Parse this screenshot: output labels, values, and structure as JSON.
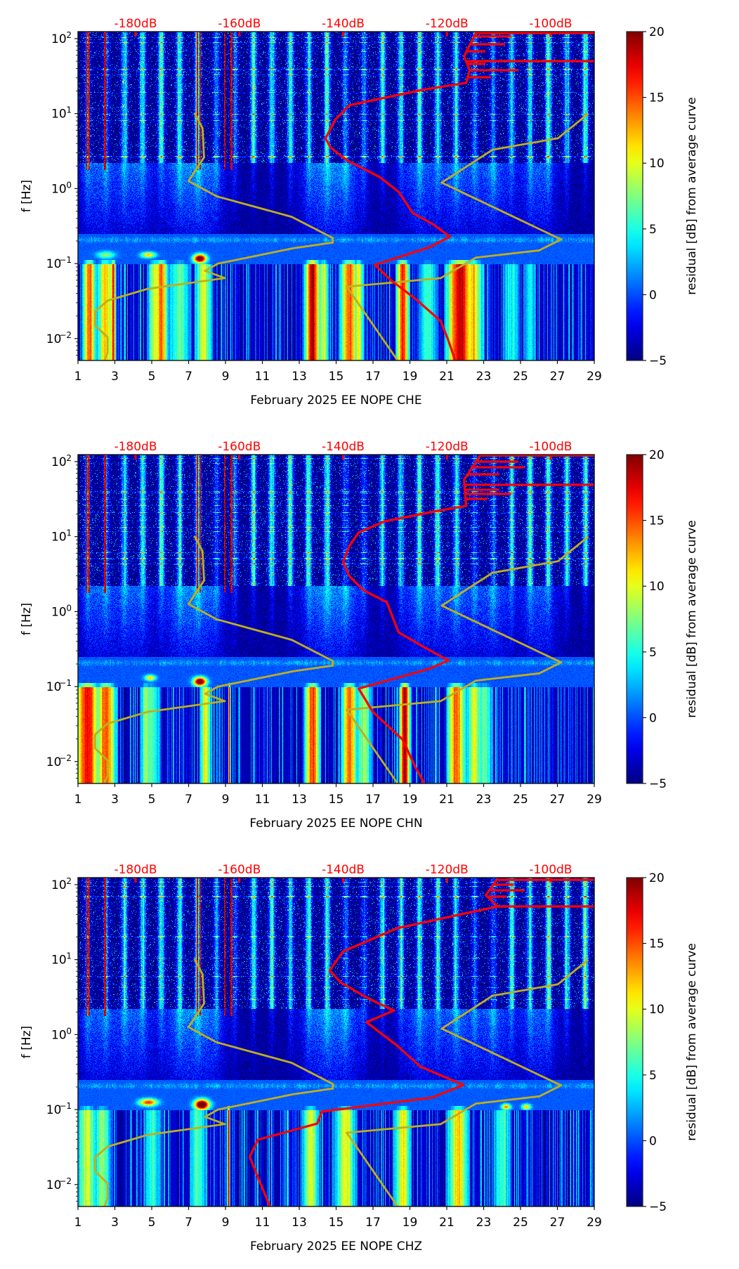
{
  "figure": {
    "ylabel": "f [Hz]",
    "colorbar_label": "residual [dB] from average curve"
  },
  "chart_data": [
    {
      "type": "heatmap",
      "title": "",
      "channel": "CHE",
      "xlabel": "February 2025 EE NOPE  CHE",
      "ylabel": "f [Hz]",
      "xlim": [
        1,
        29
      ],
      "x_ticks": [
        1,
        3,
        5,
        7,
        9,
        11,
        13,
        15,
        17,
        19,
        21,
        23,
        25,
        27,
        29
      ],
      "x_tick_labels": [
        "1",
        "3",
        "5",
        "7",
        "9",
        "11",
        "13",
        "15",
        "17",
        "19",
        "21",
        "23",
        "25",
        "27",
        "29"
      ],
      "y_scale": "log",
      "ylim": [
        0.0051,
        124
      ],
      "y_ticks": [
        0.01,
        0.1,
        1,
        10,
        100
      ],
      "y_tick_labels": [
        {
          "base": "10",
          "exp": "−2"
        },
        {
          "base": "10",
          "exp": "−1"
        },
        {
          "base": "10",
          "exp": "0"
        },
        {
          "base": "10",
          "exp": "1"
        },
        {
          "base": "10",
          "exp": "2"
        }
      ],
      "top_axis": {
        "range": [
          -191.1,
          -91.6
        ],
        "ticks": [
          -180,
          -160,
          -140,
          -120,
          -100
        ],
        "labels": [
          "-180dB",
          "-160dB",
          "-140dB",
          "-120dB",
          "-100dB"
        ],
        "color": "#ff0000"
      },
      "colorbar": {
        "colormap": "jet",
        "range": [
          -5,
          20
        ],
        "ticks": [
          -5,
          0,
          5,
          10,
          15,
          20
        ],
        "tick_labels": [
          "−5",
          "0",
          "5",
          "10",
          "15",
          "20"
        ],
        "label": "residual [dB] from average curve"
      },
      "series": [
        {
          "name": "NLNM",
          "color": "#c0ae1e",
          "axis": "top_dB",
          "points": [
            [
              10,
              -168.6
            ],
            [
              6.4,
              -167.1
            ],
            [
              2.6,
              -166.8
            ],
            [
              1.26,
              -169.8
            ],
            [
              0.79,
              -164.4
            ],
            [
              0.42,
              -149.9
            ],
            [
              0.22,
              -142.0
            ],
            [
              0.19,
              -142.0
            ],
            [
              0.16,
              -149.6
            ],
            [
              0.1,
              -164.1
            ],
            [
              0.08,
              -166.6
            ],
            [
              0.064,
              -162.8
            ],
            [
              0.046,
              -177.7
            ],
            [
              0.032,
              -185.4
            ],
            [
              0.023,
              -187.8
            ],
            [
              0.015,
              -187.8
            ],
            [
              0.0104,
              -185.4
            ],
            [
              0.0065,
              -185.4
            ],
            [
              0.0051,
              -186.0
            ]
          ]
        },
        {
          "name": "NHNM",
          "color": "#c0ae1e",
          "axis": "top_dB",
          "points": [
            [
              9.8,
              -92.9
            ],
            [
              4.7,
              -98.6
            ],
            [
              3.3,
              -111.2
            ],
            [
              1.2,
              -121.0
            ],
            [
              0.21,
              -98.0
            ],
            [
              0.15,
              -102.2
            ],
            [
              0.12,
              -114.4
            ],
            [
              0.064,
              -121.2
            ],
            [
              0.049,
              -139.3
            ],
            [
              0.0051,
              -129.5
            ]
          ]
        },
        {
          "name": "PSD",
          "color": "#ff0000",
          "axis": "top_dB",
          "points": [
            [
              119,
              -114.4
            ],
            [
              58.3,
              -116.7
            ],
            [
              37.9,
              -115.6
            ],
            [
              25.7,
              -116.3
            ],
            [
              20.7,
              -124.8
            ],
            [
              15.3,
              -133.9
            ],
            [
              12.9,
              -138.8
            ],
            [
              8.36,
              -141.5
            ],
            [
              4.67,
              -143.4
            ],
            [
              3.52,
              -142.4
            ],
            [
              2.39,
              -139.3
            ],
            [
              1.43,
              -133.0
            ],
            [
              0.906,
              -129.3
            ],
            [
              0.474,
              -126.6
            ],
            [
              0.328,
              -122.5
            ],
            [
              0.228,
              -119.4
            ],
            [
              0.164,
              -123.5
            ],
            [
              0.096,
              -133.9
            ],
            [
              0.0585,
              -130.6
            ],
            [
              0.0327,
              -125.8
            ],
            [
              0.0171,
              -121.2
            ],
            [
              0.00975,
              -119.8
            ],
            [
              0.00512,
              -118.4
            ]
          ],
          "spikes": [
            [
              119,
              -91.6
            ],
            [
              107,
              -107.6
            ],
            [
              84.1,
              -108.8
            ],
            [
              67.8,
              -112.6
            ],
            [
              50.1,
              -91.6
            ],
            [
              46,
              -112.6
            ],
            [
              37.9,
              -106.2
            ],
            [
              30.5,
              -111.5
            ]
          ]
        }
      ]
    },
    {
      "type": "heatmap",
      "title": "",
      "channel": "CHN",
      "xlabel": "February 2025 EE NOPE  CHN",
      "ylabel": "f [Hz]",
      "xlim": [
        1,
        29
      ],
      "x_ticks": [
        1,
        3,
        5,
        7,
        9,
        11,
        13,
        15,
        17,
        19,
        21,
        23,
        25,
        27,
        29
      ],
      "x_tick_labels": [
        "1",
        "3",
        "5",
        "7",
        "9",
        "11",
        "13",
        "15",
        "17",
        "19",
        "21",
        "23",
        "25",
        "27",
        "29"
      ],
      "y_scale": "log",
      "ylim": [
        0.0051,
        124
      ],
      "y_ticks": [
        0.01,
        0.1,
        1,
        10,
        100
      ],
      "y_tick_labels": [
        {
          "base": "10",
          "exp": "−2"
        },
        {
          "base": "10",
          "exp": "−1"
        },
        {
          "base": "10",
          "exp": "0"
        },
        {
          "base": "10",
          "exp": "1"
        },
        {
          "base": "10",
          "exp": "2"
        }
      ],
      "top_axis": {
        "range": [
          -191.1,
          -91.6
        ],
        "ticks": [
          -180,
          -160,
          -140,
          -120,
          -100
        ],
        "labels": [
          "-180dB",
          "-160dB",
          "-140dB",
          "-120dB",
          "-100dB"
        ],
        "color": "#ff0000"
      },
      "colorbar": {
        "colormap": "jet",
        "range": [
          -5,
          20
        ],
        "ticks": [
          -5,
          0,
          5,
          10,
          15,
          20
        ],
        "tick_labels": [
          "−5",
          "0",
          "5",
          "10",
          "15",
          "20"
        ],
        "label": "residual [dB] from average curve"
      },
      "series": [
        {
          "name": "NLNM",
          "color": "#c0ae1e",
          "axis": "top_dB",
          "points": [
            [
              10,
              -168.6
            ],
            [
              6.4,
              -167.1
            ],
            [
              2.6,
              -166.8
            ],
            [
              1.26,
              -169.8
            ],
            [
              0.79,
              -164.4
            ],
            [
              0.42,
              -149.9
            ],
            [
              0.22,
              -142.0
            ],
            [
              0.19,
              -142.0
            ],
            [
              0.16,
              -149.6
            ],
            [
              0.1,
              -164.1
            ],
            [
              0.08,
              -166.6
            ],
            [
              0.064,
              -162.8
            ],
            [
              0.046,
              -177.7
            ],
            [
              0.032,
              -185.4
            ],
            [
              0.023,
              -187.8
            ],
            [
              0.015,
              -187.8
            ],
            [
              0.0104,
              -185.4
            ],
            [
              0.0065,
              -185.4
            ],
            [
              0.0051,
              -186.0
            ]
          ]
        },
        {
          "name": "NHNM",
          "color": "#c0ae1e",
          "axis": "top_dB",
          "points": [
            [
              9.8,
              -92.9
            ],
            [
              4.7,
              -98.6
            ],
            [
              3.3,
              -111.2
            ],
            [
              1.2,
              -121.0
            ],
            [
              0.21,
              -98.0
            ],
            [
              0.15,
              -102.2
            ],
            [
              0.12,
              -114.4
            ],
            [
              0.064,
              -121.2
            ],
            [
              0.049,
              -139.3
            ],
            [
              0.0051,
              -129.5
            ]
          ]
        },
        {
          "name": "PSD",
          "color": "#ff0000",
          "axis": "top_dB",
          "points": [
            [
              121,
              -113.6
            ],
            [
              57.0,
              -116.7
            ],
            [
              25.7,
              -116.3
            ],
            [
              21.6,
              -122.5
            ],
            [
              16.0,
              -132.0
            ],
            [
              11.3,
              -137.0
            ],
            [
              7.5,
              -138.8
            ],
            [
              4.57,
              -140.0
            ],
            [
              2.97,
              -138.8
            ],
            [
              1.93,
              -136.1
            ],
            [
              1.34,
              -131.6
            ],
            [
              0.528,
              -129.3
            ],
            [
              0.321,
              -123.9
            ],
            [
              0.223,
              -119.7
            ],
            [
              0.172,
              -123.5
            ],
            [
              0.094,
              -137.0
            ],
            [
              0.0461,
              -134.3
            ],
            [
              0.0195,
              -128.5
            ],
            [
              0.00875,
              -126.2
            ],
            [
              0.00532,
              -124.5
            ]
          ],
          "spikes": [
            [
              121,
              -91.6
            ],
            [
              100,
              -106.2
            ],
            [
              84,
              -105.0
            ],
            [
              67.8,
              -109.9
            ],
            [
              49.1,
              -91.6
            ],
            [
              42.1,
              -109.9
            ],
            [
              37.1,
              -107.6
            ],
            [
              31.8,
              -112.2
            ]
          ]
        }
      ]
    },
    {
      "type": "heatmap",
      "title": "",
      "channel": "CHZ",
      "xlabel": "February 2025 EE NOPE  CHZ",
      "ylabel": "f [Hz]",
      "xlim": [
        1,
        29
      ],
      "x_ticks": [
        1,
        3,
        5,
        7,
        9,
        11,
        13,
        15,
        17,
        19,
        21,
        23,
        25,
        27,
        29
      ],
      "x_tick_labels": [
        "1",
        "3",
        "5",
        "7",
        "9",
        "11",
        "13",
        "15",
        "17",
        "19",
        "21",
        "23",
        "25",
        "27",
        "29"
      ],
      "y_scale": "log",
      "ylim": [
        0.0051,
        124
      ],
      "y_ticks": [
        0.01,
        0.1,
        1,
        10,
        100
      ],
      "y_tick_labels": [
        {
          "base": "10",
          "exp": "−2"
        },
        {
          "base": "10",
          "exp": "−1"
        },
        {
          "base": "10",
          "exp": "0"
        },
        {
          "base": "10",
          "exp": "1"
        },
        {
          "base": "10",
          "exp": "2"
        }
      ],
      "top_axis": {
        "range": [
          -191.1,
          -91.6
        ],
        "ticks": [
          -180,
          -160,
          -140,
          -120,
          -100
        ],
        "labels": [
          "-180dB",
          "-160dB",
          "-140dB",
          "-120dB",
          "-100dB"
        ],
        "color": "#ff0000"
      },
      "colorbar": {
        "colormap": "jet",
        "range": [
          -5,
          20
        ],
        "ticks": [
          -5,
          0,
          5,
          10,
          15,
          20
        ],
        "tick_labels": [
          "−5",
          "0",
          "5",
          "10",
          "15",
          "20"
        ],
        "label": "residual [dB] from average curve"
      },
      "series": [
        {
          "name": "NLNM",
          "color": "#c0ae1e",
          "axis": "top_dB",
          "points": [
            [
              10,
              -168.6
            ],
            [
              6.4,
              -167.1
            ],
            [
              2.6,
              -166.8
            ],
            [
              1.26,
              -169.8
            ],
            [
              0.79,
              -164.4
            ],
            [
              0.42,
              -149.9
            ],
            [
              0.22,
              -142.0
            ],
            [
              0.19,
              -142.0
            ],
            [
              0.16,
              -149.6
            ],
            [
              0.1,
              -164.1
            ],
            [
              0.08,
              -166.6
            ],
            [
              0.064,
              -162.8
            ],
            [
              0.046,
              -177.7
            ],
            [
              0.032,
              -185.4
            ],
            [
              0.023,
              -187.8
            ],
            [
              0.015,
              -187.8
            ],
            [
              0.0104,
              -185.4
            ],
            [
              0.0065,
              -185.4
            ],
            [
              0.0051,
              -186.0
            ]
          ]
        },
        {
          "name": "NHNM",
          "color": "#c0ae1e",
          "axis": "top_dB",
          "points": [
            [
              9.8,
              -92.9
            ],
            [
              4.7,
              -98.6
            ],
            [
              3.3,
              -111.2
            ],
            [
              1.2,
              -121.0
            ],
            [
              0.21,
              -98.0
            ],
            [
              0.15,
              -102.2
            ],
            [
              0.12,
              -114.4
            ],
            [
              0.064,
              -121.2
            ],
            [
              0.049,
              -139.3
            ],
            [
              0.0051,
              -129.5
            ]
          ]
        },
        {
          "name": "PSD",
          "color": "#ff0000",
          "axis": "top_dB",
          "points": [
            [
              116,
              -110.4
            ],
            [
              72.2,
              -112.5
            ],
            [
              51.2,
              -110.2
            ],
            [
              39.5,
              -117.8
            ],
            [
              26.2,
              -129.6
            ],
            [
              17.0,
              -135.9
            ],
            [
              12.9,
              -140.0
            ],
            [
              7.19,
              -142.6
            ],
            [
              4.98,
              -140.5
            ],
            [
              3.24,
              -135.9
            ],
            [
              2.61,
              -133.2
            ],
            [
              2.1,
              -130.2
            ],
            [
              1.46,
              -135.5
            ],
            [
              0.714,
              -129.6
            ],
            [
              0.374,
              -125.1
            ],
            [
              0.213,
              -116.8
            ],
            [
              0.145,
              -122.8
            ],
            [
              0.094,
              -144.1
            ],
            [
              0.065,
              -145.0
            ],
            [
              0.0396,
              -156.4
            ],
            [
              0.0236,
              -158.0
            ],
            [
              0.0124,
              -156.4
            ],
            [
              0.0051,
              -154.1
            ]
          ],
          "spikes": [
            [
              116,
              -91.6
            ],
            [
              100,
              -107.2
            ],
            [
              84,
              -105.0
            ],
            [
              69.3,
              -108.5
            ],
            [
              51.2,
              -91.6
            ]
          ]
        }
      ]
    }
  ]
}
